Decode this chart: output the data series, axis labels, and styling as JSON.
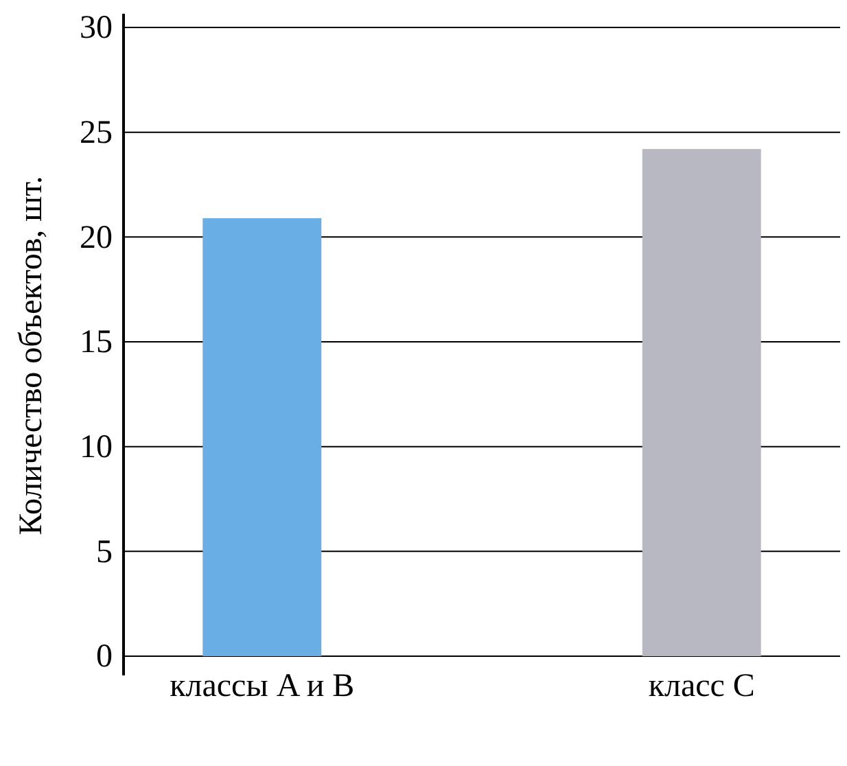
{
  "chart_data": {
    "type": "bar",
    "categories": [
      "классы A и B",
      "класс C"
    ],
    "values": [
      20.9,
      24.2
    ],
    "colors": [
      "#6aaee6",
      "#b8b8c2"
    ],
    "ylabel": "Количество объектов, шт.",
    "ylim": [
      0,
      30
    ],
    "yticks": [
      0,
      5,
      10,
      15,
      20,
      25,
      30
    ],
    "grid": "y"
  }
}
